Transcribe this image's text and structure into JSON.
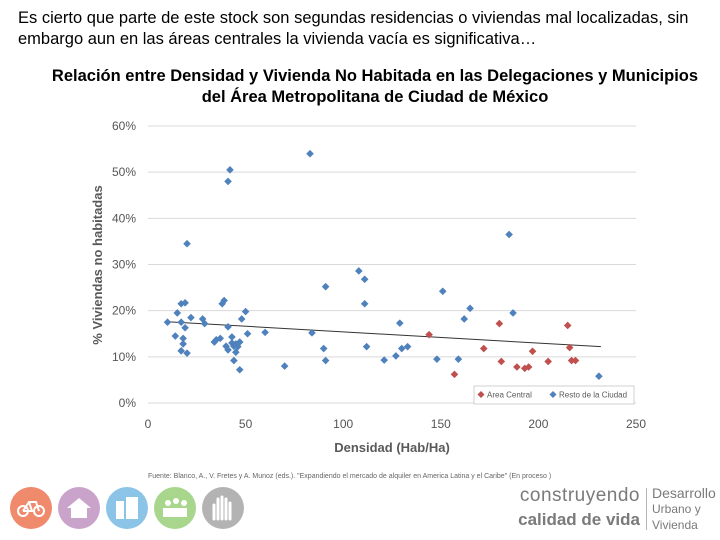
{
  "intro_text": "Es cierto que parte de este stock son segundas residencias o viviendas mal localizadas, sin embargo aun en las áreas centrales la vivienda vacía es significativa…",
  "source_text": "Fuente: Blanco, A., V. Fretes y A. Munoz (eds.). \"Expandiendo el mercado de alquiler en America Latina y el Caribe\" (En proceso  )",
  "brand": {
    "line1": "construyendo",
    "line2": "calidad de vida",
    "right1": "Desarrollo",
    "right2": "Urbano y",
    "right3": "Vivienda"
  },
  "logos": [
    {
      "name": "bicycle-logo-icon",
      "color": "#f08a6c"
    },
    {
      "name": "house-logo-icon",
      "color": "#c9a3c9"
    },
    {
      "name": "buildings-logo-icon",
      "color": "#8cc4e8"
    },
    {
      "name": "community-logo-icon",
      "color": "#a8d68c"
    },
    {
      "name": "hands-logo-icon",
      "color": "#b3b3b3"
    }
  ],
  "chart_data": {
    "type": "scatter",
    "title": "Relación entre Densidad y Vivienda No Habitada en las Delegaciones y Municipios del Área Metropolitana de Ciudad de México",
    "xlabel": "Densidad (Hab/Ha)",
    "ylabel": "% Viviendas no habitadas",
    "xlim": [
      0,
      250
    ],
    "ylim": [
      0,
      0.6
    ],
    "x_ticks": [
      0,
      50,
      100,
      150,
      200,
      250
    ],
    "y_ticks": [
      0,
      0.1,
      0.2,
      0.3,
      0.4,
      0.5,
      0.6
    ],
    "x_tick_labels": [
      "0",
      "50",
      "100",
      "150",
      "200",
      "250"
    ],
    "y_tick_labels": [
      "0%",
      "10%",
      "20%",
      "30%",
      "40%",
      "50%",
      "60%"
    ],
    "grid": "horizontal",
    "legend": "bottom-right",
    "trendline": {
      "x": [
        10,
        232
      ],
      "y": [
        0.176,
        0.122
      ],
      "color": "#333333"
    },
    "series": [
      {
        "name": "Area Central",
        "color": "#c0504d",
        "points": [
          [
            144,
            0.148
          ],
          [
            157,
            0.062
          ],
          [
            172,
            0.118
          ],
          [
            180,
            0.172
          ],
          [
            181,
            0.09
          ],
          [
            189,
            0.078
          ],
          [
            193,
            0.075
          ],
          [
            195,
            0.078
          ],
          [
            197,
            0.112
          ],
          [
            205,
            0.09
          ],
          [
            215,
            0.168
          ],
          [
            216,
            0.12
          ],
          [
            217,
            0.092
          ],
          [
            219,
            0.092
          ]
        ]
      },
      {
        "name": "Resto de la Ciudad",
        "color": "#4f81bd",
        "points": [
          [
            10,
            0.175
          ],
          [
            14,
            0.145
          ],
          [
            15,
            0.195
          ],
          [
            17,
            0.215
          ],
          [
            17,
            0.175
          ],
          [
            17,
            0.113
          ],
          [
            18,
            0.128
          ],
          [
            18,
            0.14
          ],
          [
            19,
            0.217
          ],
          [
            19,
            0.163
          ],
          [
            20,
            0.108
          ],
          [
            20,
            0.345
          ],
          [
            22,
            0.185
          ],
          [
            28,
            0.182
          ],
          [
            29,
            0.172
          ],
          [
            34,
            0.132
          ],
          [
            35,
            0.137
          ],
          [
            37,
            0.14
          ],
          [
            38,
            0.215
          ],
          [
            39,
            0.222
          ],
          [
            40,
            0.123
          ],
          [
            41,
            0.115
          ],
          [
            41,
            0.165
          ],
          [
            41,
            0.48
          ],
          [
            42,
            0.505
          ],
          [
            43,
            0.143
          ],
          [
            43,
            0.13
          ],
          [
            44,
            0.123
          ],
          [
            44,
            0.092
          ],
          [
            45,
            0.128
          ],
          [
            45,
            0.11
          ],
          [
            46,
            0.122
          ],
          [
            47,
            0.072
          ],
          [
            47,
            0.132
          ],
          [
            48,
            0.182
          ],
          [
            50,
            0.198
          ],
          [
            51,
            0.15
          ],
          [
            60,
            0.153
          ],
          [
            70,
            0.08
          ],
          [
            83,
            0.54
          ],
          [
            84,
            0.152
          ],
          [
            90,
            0.118
          ],
          [
            91,
            0.252
          ],
          [
            91,
            0.092
          ],
          [
            108,
            0.286
          ],
          [
            111,
            0.268
          ],
          [
            111,
            0.215
          ],
          [
            112,
            0.122
          ],
          [
            121,
            0.093
          ],
          [
            127,
            0.102
          ],
          [
            129,
            0.173
          ],
          [
            130,
            0.118
          ],
          [
            133,
            0.122
          ],
          [
            148,
            0.095
          ],
          [
            151,
            0.242
          ],
          [
            159,
            0.095
          ],
          [
            162,
            0.182
          ],
          [
            165,
            0.205
          ],
          [
            185,
            0.365
          ],
          [
            187,
            0.195
          ],
          [
            231,
            0.058
          ]
        ]
      }
    ]
  }
}
